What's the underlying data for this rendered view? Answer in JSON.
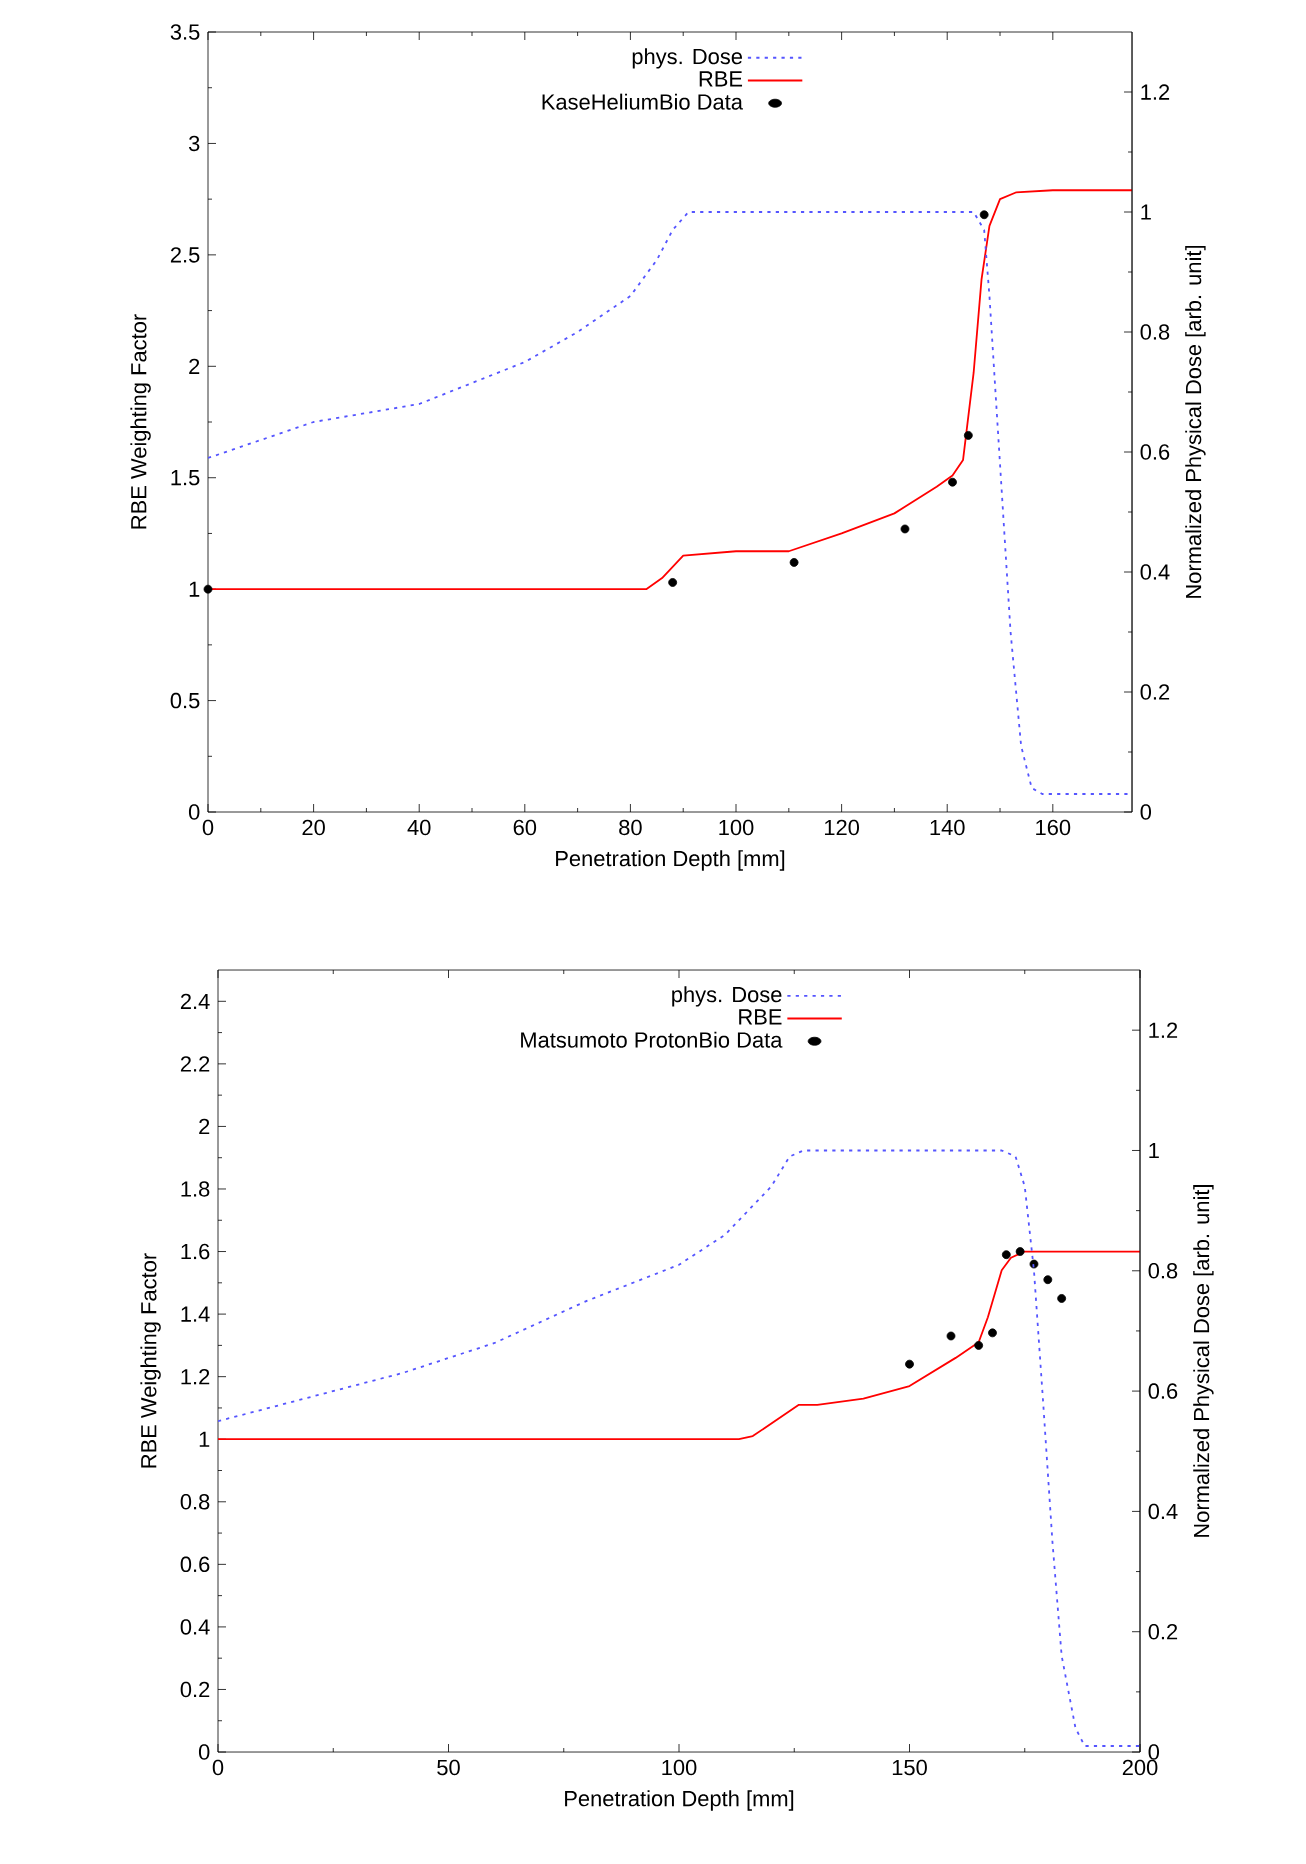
{
  "chart_data": [
    {
      "type": "line",
      "xlabel": "Penetration Depth [mm]",
      "ylabel": "RBE Weighting Factor",
      "y2label": "Normalized Physical Dose [arb. unit]",
      "xlim": [
        0,
        175
      ],
      "xticks": [
        0,
        20,
        40,
        60,
        80,
        100,
        120,
        140,
        160
      ],
      "ylim": [
        0,
        3.5
      ],
      "yticks": [
        0,
        0.5,
        1,
        1.5,
        2,
        2.5,
        3,
        3.5
      ],
      "y2lim": [
        0,
        1.3
      ],
      "y2ticks": [
        0,
        0.2,
        0.4,
        0.6,
        0.8,
        1,
        1.2
      ],
      "legend": "top",
      "grid": false,
      "series": [
        {
          "name": "phys. Dose",
          "type": "line",
          "axis": "y2",
          "color": "#5555ff",
          "line_style": "dotted",
          "x": [
            0,
            20,
            40,
            60,
            70,
            80,
            85,
            88,
            91,
            100,
            120,
            140,
            145,
            147,
            148,
            150,
            152,
            154,
            156,
            158,
            175
          ],
          "values": [
            0.59,
            0.65,
            0.68,
            0.75,
            0.8,
            0.86,
            0.92,
            0.97,
            1.0,
            1.0,
            1.0,
            1.0,
            1.0,
            0.97,
            0.86,
            0.58,
            0.3,
            0.11,
            0.04,
            0.03,
            0.03
          ]
        },
        {
          "name": "RBE",
          "type": "line",
          "color": "#ff0000",
          "line_style": "solid",
          "x": [
            0,
            83,
            86,
            90,
            100,
            110,
            120,
            130,
            138,
            141,
            143,
            145,
            146.5,
            148,
            150,
            153,
            160,
            175
          ],
          "values": [
            1.0,
            1.0,
            1.05,
            1.15,
            1.17,
            1.17,
            1.25,
            1.34,
            1.46,
            1.51,
            1.58,
            1.97,
            2.39,
            2.63,
            2.75,
            2.78,
            2.79,
            2.79
          ]
        },
        {
          "name": "KaseHeliumBio Data",
          "type": "scatter",
          "marker": "circle",
          "color": "#000000",
          "x": [
            0,
            88,
            111,
            132,
            141,
            144,
            147
          ],
          "values": [
            1.0,
            1.03,
            1.12,
            1.27,
            1.48,
            1.69,
            2.68
          ]
        }
      ]
    },
    {
      "type": "line",
      "xlabel": "Penetration Depth [mm]",
      "ylabel": "RBE Weighting Factor",
      "y2label": "Normalized Physical Dose [arb. unit]",
      "xlim": [
        0,
        200
      ],
      "xticks": [
        0,
        50,
        100,
        150,
        200
      ],
      "ylim": [
        0,
        2.5
      ],
      "yticks": [
        0,
        0.2,
        0.4,
        0.6,
        0.8,
        1,
        1.2,
        1.4,
        1.6,
        1.8,
        2,
        2.2,
        2.4
      ],
      "y2lim": [
        0,
        1.3
      ],
      "y2ticks": [
        0,
        0.2,
        0.4,
        0.6,
        0.8,
        1,
        1.2
      ],
      "legend": "top",
      "grid": false,
      "series": [
        {
          "name": "phys. Dose",
          "type": "line",
          "axis": "y2",
          "color": "#5555ff",
          "line_style": "dotted",
          "x": [
            0,
            20,
            40,
            60,
            80,
            100,
            110,
            115,
            120,
            124,
            127,
            170,
            173,
            175,
            177,
            179,
            181,
            183,
            186,
            188,
            200
          ],
          "values": [
            0.55,
            0.59,
            0.63,
            0.68,
            0.75,
            0.81,
            0.86,
            0.9,
            0.94,
            0.99,
            1.0,
            1.0,
            0.99,
            0.94,
            0.8,
            0.58,
            0.35,
            0.16,
            0.04,
            0.01,
            0.01
          ]
        },
        {
          "name": "RBE",
          "type": "line",
          "color": "#ff0000",
          "line_style": "solid",
          "x": [
            0,
            113,
            116,
            126,
            130,
            140,
            150,
            160,
            165,
            167,
            170,
            172,
            175,
            200
          ],
          "values": [
            1.0,
            1.0,
            1.01,
            1.11,
            1.11,
            1.13,
            1.17,
            1.26,
            1.31,
            1.39,
            1.54,
            1.58,
            1.6,
            1.6
          ]
        },
        {
          "name": "Matsumoto ProtonBio Data",
          "type": "scatter",
          "marker": "circle",
          "color": "#000000",
          "x": [
            150,
            159,
            165,
            168,
            171,
            174,
            177,
            180,
            183
          ],
          "values": [
            1.24,
            1.33,
            1.3,
            1.34,
            1.59,
            1.6,
            1.56,
            1.51,
            1.45
          ]
        }
      ]
    }
  ]
}
